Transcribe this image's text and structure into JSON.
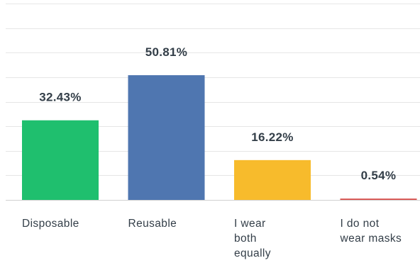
{
  "chart_data": {
    "type": "bar",
    "categories": [
      [
        "Disposable"
      ],
      [
        "Reusable"
      ],
      [
        "I wear",
        "both",
        "equally"
      ],
      [
        "I do not",
        "wear masks"
      ]
    ],
    "values": [
      32.43,
      50.81,
      16.22,
      0.54
    ],
    "value_labels": [
      "32.43%",
      "50.81%",
      "16.22%",
      "0.54%"
    ],
    "colors": [
      "#1fbf6e",
      "#4f76b0",
      "#f7bb2c",
      "#d9534f"
    ],
    "ylim": [
      0,
      80
    ],
    "grid": true,
    "title": "",
    "xlabel": "",
    "ylabel": ""
  }
}
